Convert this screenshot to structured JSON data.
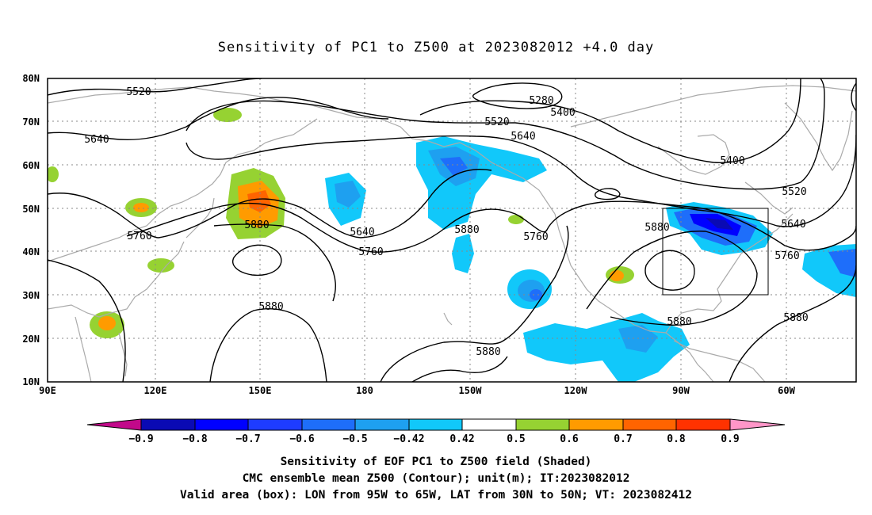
{
  "title": "Sensitivity of PC1 to Z500 at 2023082012 +4.0 day",
  "map": {
    "lat_labels": [
      "80N",
      "70N",
      "60N",
      "50N",
      "40N",
      "30N",
      "20N",
      "10N"
    ],
    "lon_labels": [
      "90E",
      "120E",
      "150E",
      "180",
      "150W",
      "120W",
      "90W",
      "60W"
    ],
    "contour_labels": [
      "5520",
      "5640",
      "5760",
      "5880",
      "5280",
      "5400",
      "5520",
      "5640",
      "5880",
      "5640",
      "5760",
      "5880",
      "5760",
      "5400",
      "5520",
      "5880",
      "5640",
      "5760",
      "5880",
      "5880",
      "5880"
    ],
    "valid_box": {
      "lon_from": "95W",
      "lon_to": "65W",
      "lat_from": "30N",
      "lat_to": "50N"
    },
    "colors": {
      "contour": "#000000",
      "coast": "#aaaaaa",
      "grid": "#888888"
    }
  },
  "colorbar": {
    "labels": [
      "−0.9",
      "−0.8",
      "−0.7",
      "−0.6",
      "−0.5",
      "−0.42",
      "0.42",
      "0.5",
      "0.6",
      "0.7",
      "0.8",
      "0.9"
    ],
    "colors": [
      "#c2098a",
      "#0a0ab4",
      "#0000ff",
      "#1e3cff",
      "#1e6efa",
      "#1ea0f0",
      "#11c8fa",
      "#ffffff",
      "#96d232",
      "#ff9b00",
      "#ff6400",
      "#ff3200",
      "#ff0000",
      "#ff96c8"
    ]
  },
  "captions": [
    "Sensitivity of EOF PC1 to Z500 field (Shaded)",
    "CMC ensemble mean Z500 (Contour); unit(m); IT:2023082012",
    "Valid area (box): LON from 95W to 65W, LAT from 30N to 50N; VT: 2023082412"
  ]
}
